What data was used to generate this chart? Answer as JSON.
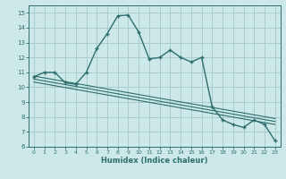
{
  "xlabel": "Humidex (Indice chaleur)",
  "bg_color": "#cce8e8",
  "grid_color": "#aacccc",
  "line_color": "#2e6e6e",
  "xlim": [
    -0.5,
    23.5
  ],
  "ylim": [
    6,
    15.5
  ],
  "xticks": [
    0,
    1,
    2,
    3,
    4,
    5,
    6,
    7,
    8,
    9,
    10,
    11,
    12,
    13,
    14,
    15,
    16,
    17,
    18,
    19,
    20,
    21,
    22,
    23
  ],
  "yticks": [
    6,
    7,
    8,
    9,
    10,
    11,
    12,
    13,
    14,
    15
  ],
  "main_x": [
    0,
    1,
    2,
    3,
    4,
    5,
    6,
    7,
    8,
    9,
    10,
    11,
    12,
    13,
    14,
    15,
    16,
    17,
    18,
    19,
    20,
    21,
    22,
    23
  ],
  "main_y": [
    10.7,
    11.0,
    11.0,
    10.3,
    10.2,
    11.0,
    12.6,
    13.6,
    14.8,
    14.85,
    13.7,
    11.9,
    12.0,
    12.5,
    12.0,
    11.7,
    12.0,
    8.7,
    7.8,
    7.5,
    7.3,
    7.8,
    7.5,
    6.4
  ],
  "line1_x": [
    0,
    23
  ],
  "line1_y": [
    10.75,
    7.9
  ],
  "line2_x": [
    0,
    23
  ],
  "line2_y": [
    10.55,
    7.7
  ],
  "line3_x": [
    0,
    23
  ],
  "line3_y": [
    10.35,
    7.5
  ]
}
